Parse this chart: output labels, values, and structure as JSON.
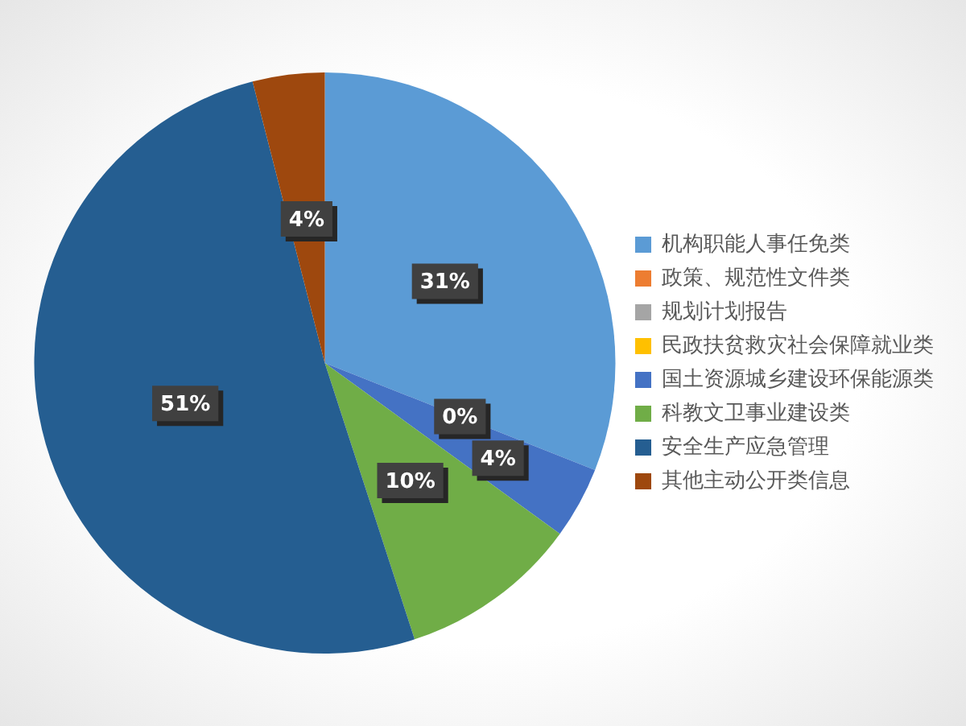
{
  "chart_data": {
    "type": "pie",
    "categories": [
      "机构职能人事任免类",
      "政策、规范性文件类",
      "规划计划报告",
      "民政扶贫救灾社会保障就业类",
      "国土资源城乡建设环保能源类",
      "科教文卫事业建设类",
      "安全生产应急管理",
      "其他主动公开类信息"
    ],
    "values": [
      31,
      0,
      0,
      0,
      4,
      10,
      51,
      4
    ],
    "colors": [
      "#5b9bd5",
      "#ed7d31",
      "#a5a5a5",
      "#ffc000",
      "#4472c4",
      "#70ad47",
      "#255e91",
      "#9e480e"
    ],
    "value_labels": [
      "31%",
      null,
      null,
      "0%",
      "4%",
      "10%",
      "51%",
      "4%"
    ],
    "legend": "right"
  }
}
